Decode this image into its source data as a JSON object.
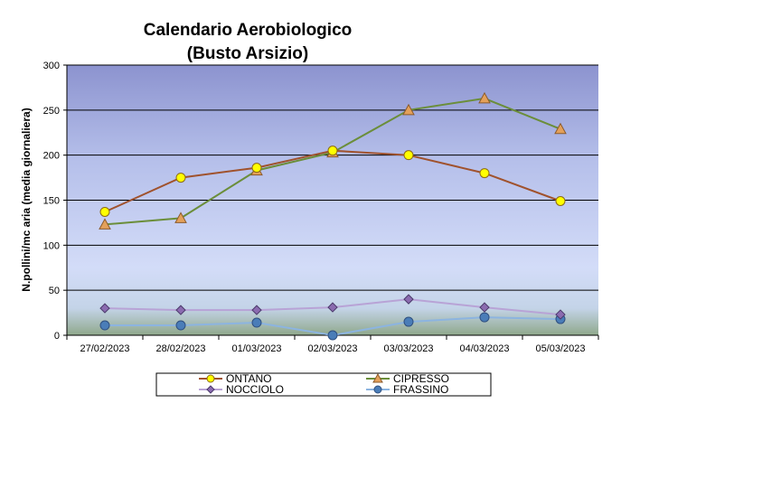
{
  "chart_data": {
    "type": "line",
    "title": "Calendario Aerobiologico",
    "subtitle": "(Busto Arsizio)",
    "ylabel": "N.pollini/mc aria (media giornaliera)",
    "xlabel": "",
    "categories": [
      "27/02/2023",
      "28/02/2023",
      "01/03/2023",
      "02/03/2023",
      "03/03/2023",
      "04/03/2023",
      "05/03/2023"
    ],
    "ylim": [
      0,
      300
    ],
    "yticks": [
      0,
      50,
      100,
      150,
      200,
      250,
      300
    ],
    "grid": true,
    "legend_position": "bottom",
    "series": [
      {
        "name": "ONTANO",
        "values": [
          137,
          175,
          186,
          205,
          200,
          180,
          149
        ],
        "line_color": "#A0522D",
        "marker": "circle",
        "marker_color": "#FFFF00"
      },
      {
        "name": "CIPRESSO",
        "values": [
          123,
          130,
          183,
          203,
          250,
          263,
          229
        ],
        "line_color": "#6B8E3A",
        "marker": "triangle",
        "marker_color": "#E3A05A"
      },
      {
        "name": "NOCCIOLO",
        "values": [
          30,
          28,
          28,
          31,
          40,
          31,
          23
        ],
        "line_color": "#B8A3D6",
        "marker": "diamond",
        "marker_color": "#8B6BB0"
      },
      {
        "name": "FRASSINO",
        "values": [
          11,
          11,
          14,
          0,
          15,
          20,
          18
        ],
        "line_color": "#8CB4E0",
        "marker": "circle",
        "marker_color": "#4A7DB8"
      }
    ]
  }
}
